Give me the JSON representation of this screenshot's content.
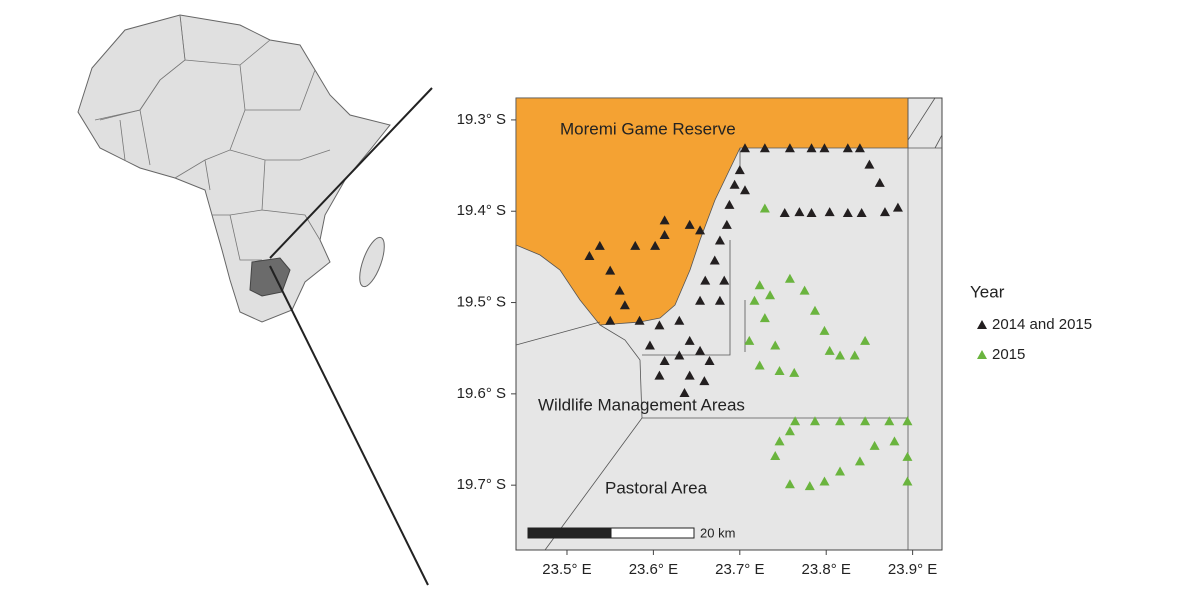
{
  "chart_data": {
    "type": "map",
    "xlim": [
      23.441,
      23.934
    ],
    "ylim": [
      19.771,
      19.276
    ],
    "xticks": [
      {
        "value": 23.5,
        "label": "23.5° E"
      },
      {
        "value": 23.6,
        "label": "23.6° E"
      },
      {
        "value": 23.7,
        "label": "23.7° E"
      },
      {
        "value": 23.8,
        "label": "23.8° E"
      },
      {
        "value": 23.9,
        "label": "23.9° E"
      }
    ],
    "yticks": [
      {
        "value": 19.3,
        "label": "19.3° S"
      },
      {
        "value": 19.4,
        "label": "19.4° S"
      },
      {
        "value": 19.5,
        "label": "19.5° S"
      },
      {
        "value": 19.6,
        "label": "19.6° S"
      },
      {
        "value": 19.7,
        "label": "19.7° S"
      }
    ],
    "regions": [
      "Moremi Game Reserve",
      "Wildlife Management Areas",
      "Pastoral Area"
    ],
    "scale_bar": "20 km",
    "legend_title": "Year",
    "series": [
      {
        "name": "2014 and 2015",
        "color": "#231f20",
        "x": [
          23.706,
          23.729,
          23.758,
          23.783,
          23.798,
          23.825,
          23.839,
          23.85,
          23.862,
          23.883,
          23.868,
          23.841,
          23.825,
          23.804,
          23.783,
          23.769,
          23.752,
          23.7,
          23.694,
          23.706,
          23.688,
          23.685,
          23.677,
          23.671,
          23.66,
          23.654,
          23.677,
          23.682,
          23.654,
          23.642,
          23.613,
          23.613,
          23.602,
          23.579,
          23.538,
          23.526,
          23.55,
          23.561,
          23.567,
          23.55,
          23.584,
          23.607,
          23.63,
          23.642,
          23.596,
          23.613,
          23.63,
          23.654,
          23.665,
          23.607,
          23.642,
          23.659,
          23.636
        ],
        "values": [
          19.331,
          19.331,
          19.331,
          19.331,
          19.331,
          19.331,
          19.331,
          19.349,
          19.369,
          19.396,
          19.401,
          19.402,
          19.402,
          19.401,
          19.402,
          19.401,
          19.402,
          19.355,
          19.371,
          19.377,
          19.393,
          19.415,
          19.432,
          19.454,
          19.476,
          19.498,
          19.498,
          19.476,
          19.421,
          19.415,
          19.41,
          19.426,
          19.438,
          19.438,
          19.438,
          19.449,
          19.465,
          19.487,
          19.503,
          19.52,
          19.52,
          19.525,
          19.52,
          19.542,
          19.547,
          19.564,
          19.558,
          19.553,
          19.564,
          19.58,
          19.58,
          19.586,
          19.599
        ]
      },
      {
        "name": "2015",
        "color": "#6ab43e",
        "x": [
          23.729,
          23.717,
          23.723,
          23.729,
          23.711,
          23.723,
          23.746,
          23.763,
          23.758,
          23.735,
          23.775,
          23.787,
          23.798,
          23.816,
          23.833,
          23.845,
          23.804,
          23.741,
          23.764,
          23.787,
          23.816,
          23.845,
          23.873,
          23.894,
          23.894,
          23.894,
          23.879,
          23.856,
          23.839,
          23.816,
          23.798,
          23.781,
          23.758,
          23.741,
          23.746,
          23.758
        ],
        "values": [
          19.397,
          19.498,
          19.481,
          19.517,
          19.542,
          19.569,
          19.575,
          19.577,
          19.474,
          19.492,
          19.487,
          19.509,
          19.531,
          19.558,
          19.558,
          19.542,
          19.553,
          19.547,
          19.63,
          19.63,
          19.63,
          19.63,
          19.63,
          19.63,
          19.669,
          19.696,
          19.652,
          19.657,
          19.674,
          19.685,
          19.696,
          19.701,
          19.699,
          19.668,
          19.652,
          19.641
        ]
      }
    ]
  }
}
